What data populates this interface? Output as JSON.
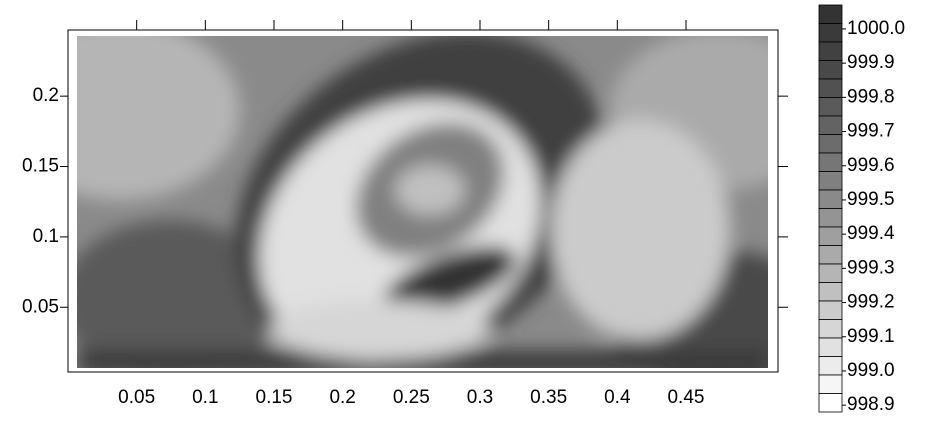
{
  "chart_data": {
    "type": "contour",
    "xlim": [
      0,
      0.517
    ],
    "ylim": [
      0.004,
      0.247
    ],
    "xticks": [
      0.05,
      0.1,
      0.15,
      0.2,
      0.25,
      0.3,
      0.35,
      0.4,
      0.45
    ],
    "yticks": [
      0.05,
      0.1,
      0.15,
      0.2
    ],
    "colorbar": {
      "clim": [
        998.88,
        1000.07
      ],
      "ticks": [
        {
          "value": 1000,
          "label": "1000.0"
        },
        999.9,
        999.8,
        999.7,
        999.6,
        999.5,
        999.4,
        999.3,
        999.2,
        999.1,
        {
          "value": 999,
          "label": "999.0"
        },
        998.9
      ],
      "colors": [
        "#333333",
        "#3a3a3a",
        "#414141",
        "#494949",
        "#515151",
        "#5a5a5a",
        "#636363",
        "#6c6c6c",
        "#767676",
        "#808080",
        "#8a8a8a",
        "#949494",
        "#9f9f9f",
        "#aaaaaa",
        "#b5b5b5",
        "#c0c0c0",
        "#cbcbcb",
        "#d6d6d6",
        "#e1e1e1",
        "#ececec",
        "#f6f6f6",
        "#ffffff"
      ]
    }
  }
}
